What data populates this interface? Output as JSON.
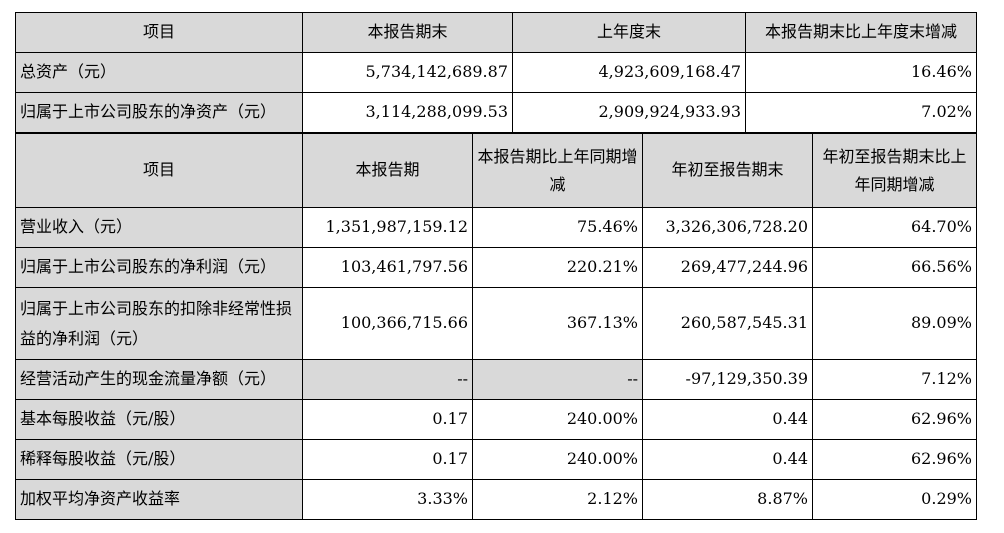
{
  "top_table": {
    "headers": [
      "项目",
      "本报告期末",
      "上年度末",
      "本报告期末比上年度末增减"
    ],
    "rows": [
      {
        "item": "总资产（元）",
        "current_end": "5,734,142,689.87",
        "prev_year_end": "4,923,609,168.47",
        "change": "16.46%"
      },
      {
        "item": "归属于上市公司股东的净资产（元）",
        "current_end": "3,114,288,099.53",
        "prev_year_end": "2,909,924,933.93",
        "change": "7.02%"
      }
    ]
  },
  "bottom_table": {
    "headers": [
      "项目",
      "本报告期",
      "本报告期比上年同期增减",
      "年初至报告期末",
      "年初至报告期末比上年同期增减"
    ],
    "rows": [
      {
        "item": "营业收入（元）",
        "period": "1,351,987,159.12",
        "period_change": "75.46%",
        "ytd": "3,326,306,728.20",
        "ytd_change": "64.70%"
      },
      {
        "item": "归属于上市公司股东的净利润（元）",
        "period": "103,461,797.56",
        "period_change": "220.21%",
        "ytd": "269,477,244.96",
        "ytd_change": "66.56%"
      },
      {
        "item": "归属于上市公司股东的扣除非经常性损益的净利润（元）",
        "period": "100,366,715.66",
        "period_change": "367.13%",
        "ytd": "260,587,545.31",
        "ytd_change": "89.09%"
      },
      {
        "item": "经营活动产生的现金流量净额（元）",
        "period": "--",
        "period_change": "--",
        "ytd": "-97,129,350.39",
        "ytd_change": "7.12%"
      },
      {
        "item": "基本每股收益（元/股）",
        "period": "0.17",
        "period_change": "240.00%",
        "ytd": "0.44",
        "ytd_change": "62.96%"
      },
      {
        "item": "稀释每股收益（元/股）",
        "period": "0.17",
        "period_change": "240.00%",
        "ytd": "0.44",
        "ytd_change": "62.96%"
      },
      {
        "item": "加权平均净资产收益率",
        "period": "3.33%",
        "period_change": "2.12%",
        "ytd": "8.87%",
        "ytd_change": "0.29%"
      }
    ]
  }
}
